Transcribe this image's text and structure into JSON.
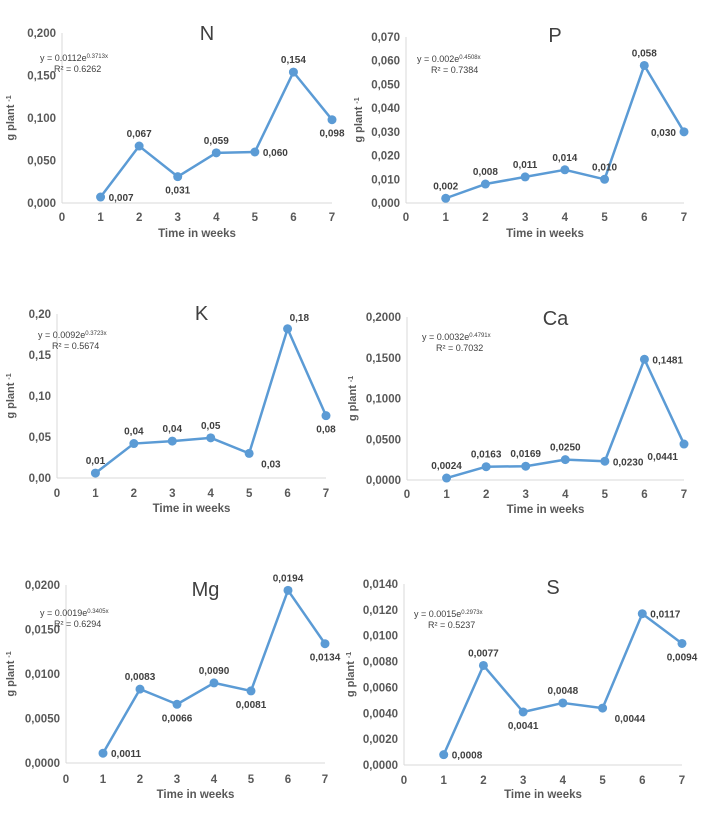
{
  "figure": {
    "line_color": "#5B9BD5",
    "text_color": "#404040",
    "axis_color": "#d9d9d9"
  },
  "chart_data": [
    {
      "type": "line",
      "title": "N",
      "xlabel": "Time in weeks",
      "ylabel": "g plant -1",
      "x": [
        1,
        2,
        3,
        4,
        5,
        6,
        7
      ],
      "values": [
        0.007,
        0.067,
        0.031,
        0.059,
        0.06,
        0.154,
        0.098
      ],
      "data_labels": [
        "0,007",
        "0,067",
        "0,031",
        "0,059",
        "0,060",
        "0,154",
        "0,098"
      ],
      "label_pos": [
        "right",
        "above",
        "below",
        "above",
        "right",
        "above",
        "below"
      ],
      "xlim": [
        0,
        7
      ],
      "ylim": [
        0,
        0.2
      ],
      "x_ticks": [
        "0",
        "1",
        "2",
        "3",
        "4",
        "5",
        "6",
        "7"
      ],
      "y_ticks": [
        "0,000",
        "0,050",
        "0,100",
        "0,150",
        "0,200"
      ],
      "y_tick_values": [
        0,
        0.05,
        0.1,
        0.15,
        0.2
      ],
      "equation": {
        "base": "y = 0.0112e",
        "exp": "0.3713x",
        "r2": "R² = 0.6262"
      },
      "grid": false
    },
    {
      "type": "line",
      "title": "P",
      "xlabel": "Time in weeks",
      "ylabel": "g plant -1",
      "x": [
        1,
        2,
        3,
        4,
        5,
        6,
        7
      ],
      "values": [
        0.002,
        0.008,
        0.011,
        0.014,
        0.01,
        0.058,
        0.03
      ],
      "data_labels": [
        "0,002",
        "0,008",
        "0,011",
        "0,014",
        "0,010",
        "0,058",
        "0,030"
      ],
      "label_pos": [
        "above",
        "above",
        "above",
        "above",
        "above",
        "above",
        "left"
      ],
      "xlim": [
        0,
        7
      ],
      "ylim": [
        0,
        0.07
      ],
      "x_ticks": [
        "0",
        "1",
        "2",
        "3",
        "4",
        "5",
        "6",
        "7"
      ],
      "y_ticks": [
        "0,000",
        "0,010",
        "0,020",
        "0,030",
        "0,040",
        "0,050",
        "0,060",
        "0,070"
      ],
      "y_tick_values": [
        0,
        0.01,
        0.02,
        0.03,
        0.04,
        0.05,
        0.06,
        0.07
      ],
      "equation": {
        "base": "y = 0.002e",
        "exp": "0.4508x",
        "r2": "R² = 0.7384"
      },
      "grid": false
    },
    {
      "type": "line",
      "title": "K",
      "xlabel": "Time in weeks",
      "ylabel": "g plant -1",
      "x": [
        1,
        2,
        3,
        4,
        5,
        6,
        7
      ],
      "values": [
        0.006,
        0.042,
        0.045,
        0.049,
        0.03,
        0.182,
        0.076
      ],
      "data_labels": [
        "0,01",
        "0,04",
        "0,04",
        "0,05",
        "0,03",
        "0,18",
        "0,08"
      ],
      "label_pos": [
        "above",
        "above",
        "above",
        "above",
        "belowright",
        "aboveright",
        "below"
      ],
      "xlim": [
        0,
        7
      ],
      "ylim": [
        0,
        0.2
      ],
      "x_ticks": [
        "0",
        "1",
        "2",
        "3",
        "4",
        "5",
        "6",
        "7"
      ],
      "y_ticks": [
        "0,00",
        "0,05",
        "0,10",
        "0,15",
        "0,20"
      ],
      "y_tick_values": [
        0,
        0.05,
        0.1,
        0.15,
        0.2
      ],
      "equation": {
        "base": "y = 0.0092e",
        "exp": "0.3723x",
        "r2": "R² = 0.5674"
      },
      "grid": false
    },
    {
      "type": "line",
      "title": "Ca",
      "xlabel": "Time in weeks",
      "ylabel": "g plant -1",
      "x": [
        1,
        2,
        3,
        4,
        5,
        6,
        7
      ],
      "values": [
        0.0024,
        0.0163,
        0.0169,
        0.025,
        0.023,
        0.1481,
        0.0441
      ],
      "data_labels": [
        "0,0024",
        "0,0163",
        "0,0169",
        "0,0250",
        "0,0230",
        "0,1481",
        "0,0441"
      ],
      "label_pos": [
        "above",
        "above",
        "above",
        "above",
        "right",
        "right",
        "belowleft"
      ],
      "xlim": [
        0,
        7
      ],
      "ylim": [
        0,
        0.2
      ],
      "x_ticks": [
        "0",
        "1",
        "2",
        "3",
        "4",
        "5",
        "6",
        "7"
      ],
      "y_ticks": [
        "0,0000",
        "0,0500",
        "0,1000",
        "0,1500",
        "0,2000"
      ],
      "y_tick_values": [
        0,
        0.05,
        0.1,
        0.15,
        0.2
      ],
      "equation": {
        "base": "y = 0.0032e",
        "exp": "0.4791x",
        "r2": "R² = 0.7032"
      },
      "grid": false
    },
    {
      "type": "line",
      "title": "Mg",
      "xlabel": "Time in weeks",
      "ylabel": "g plant -1",
      "x": [
        1,
        2,
        3,
        4,
        5,
        6,
        7
      ],
      "values": [
        0.0011,
        0.0083,
        0.0066,
        0.009,
        0.0081,
        0.0194,
        0.0134
      ],
      "data_labels": [
        "0,0011",
        "0,0083",
        "0,0066",
        "0,0090",
        "0,0081",
        "0,0194",
        "0,0134"
      ],
      "label_pos": [
        "right",
        "above",
        "below",
        "above",
        "below",
        "above",
        "below"
      ],
      "xlim": [
        0,
        7
      ],
      "ylim": [
        0,
        0.02
      ],
      "x_ticks": [
        "0",
        "1",
        "2",
        "3",
        "4",
        "5",
        "6",
        "7"
      ],
      "y_ticks": [
        "0,0000",
        "0,0050",
        "0,0100",
        "0,0150",
        "0,0200"
      ],
      "y_tick_values": [
        0,
        0.005,
        0.01,
        0.015,
        0.02
      ],
      "equation": {
        "base": "y = 0.0019e",
        "exp": "0.3405x",
        "r2": "R² = 0.6294"
      },
      "grid": false
    },
    {
      "type": "line",
      "title": "S",
      "xlabel": "Time in weeks",
      "ylabel": "g plant -1",
      "x": [
        1,
        2,
        3,
        4,
        5,
        6,
        7
      ],
      "values": [
        0.0008,
        0.0077,
        0.0041,
        0.0048,
        0.0044,
        0.0117,
        0.0094
      ],
      "data_labels": [
        "0,0008",
        "0,0077",
        "0,0041",
        "0,0048",
        "0,0044",
        "0,0117",
        "0,0094"
      ],
      "label_pos": [
        "right",
        "above",
        "below",
        "above",
        "belowright",
        "right",
        "below"
      ],
      "xlim": [
        0,
        7
      ],
      "ylim": [
        0,
        0.014
      ],
      "x_ticks": [
        "0",
        "1",
        "2",
        "3",
        "4",
        "5",
        "6",
        "7"
      ],
      "y_ticks": [
        "0,0000",
        "0,0020",
        "0,0040",
        "0,0060",
        "0,0080",
        "0,0100",
        "0,0120",
        "0,0140"
      ],
      "y_tick_values": [
        0,
        0.002,
        0.004,
        0.006,
        0.008,
        0.01,
        0.012,
        0.014
      ],
      "equation": {
        "base": "y = 0.0015e",
        "exp": "0.2973x",
        "r2": "R² = 0.5237"
      },
      "grid": false
    }
  ]
}
